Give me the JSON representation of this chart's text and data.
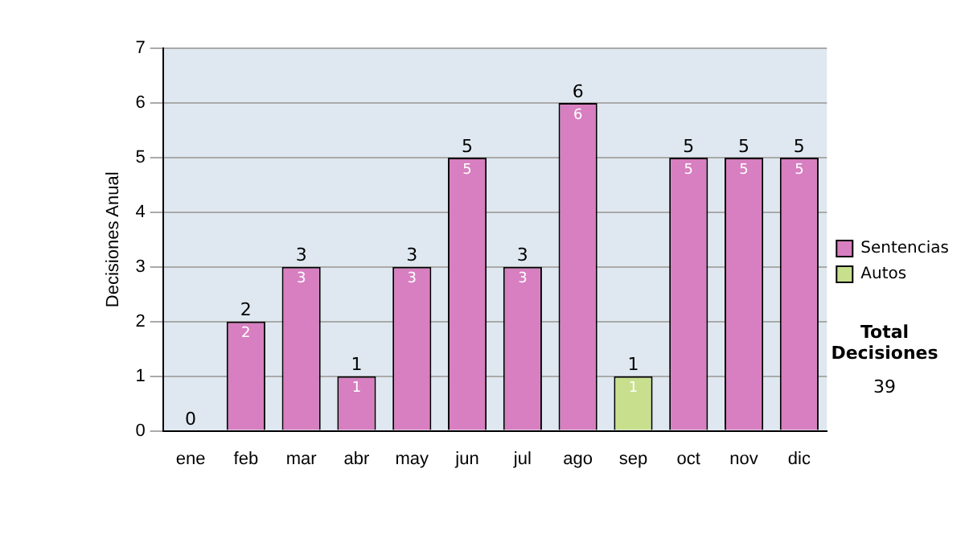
{
  "chart_data": {
    "type": "bar",
    "stacked": true,
    "ylabel": "Decisiones Anual",
    "categories": [
      "ene",
      "feb",
      "mar",
      "abr",
      "may",
      "jun",
      "jul",
      "ago",
      "sep",
      "oct",
      "nov",
      "dic"
    ],
    "series": [
      {
        "name": "Sentencias",
        "color": "#d77fc0",
        "values": [
          0,
          2,
          3,
          1,
          3,
          5,
          3,
          6,
          0,
          5,
          5,
          5
        ],
        "value_labels": [
          null,
          "2",
          "3",
          "1",
          "3",
          "5",
          "3",
          "6",
          null,
          "5",
          "5",
          "5"
        ]
      },
      {
        "name": "Autos",
        "color": "#c8e08e",
        "values": [
          0,
          0,
          0,
          0,
          0,
          0,
          0,
          0,
          1,
          0,
          0,
          0
        ],
        "value_labels": [
          null,
          null,
          null,
          null,
          null,
          null,
          null,
          null,
          "1",
          null,
          null,
          null
        ]
      }
    ],
    "totals": [
      "0",
      "2",
      "3",
      "1",
      "3",
      "5",
      "3",
      "6",
      "1",
      "5",
      "5",
      "5"
    ],
    "ylim": [
      0,
      7
    ],
    "yticks": [
      0,
      1,
      2,
      3,
      4,
      5,
      6,
      7
    ],
    "grid": "y",
    "legend": "right",
    "annotations": [
      "Total Decisiones",
      "39"
    ]
  }
}
